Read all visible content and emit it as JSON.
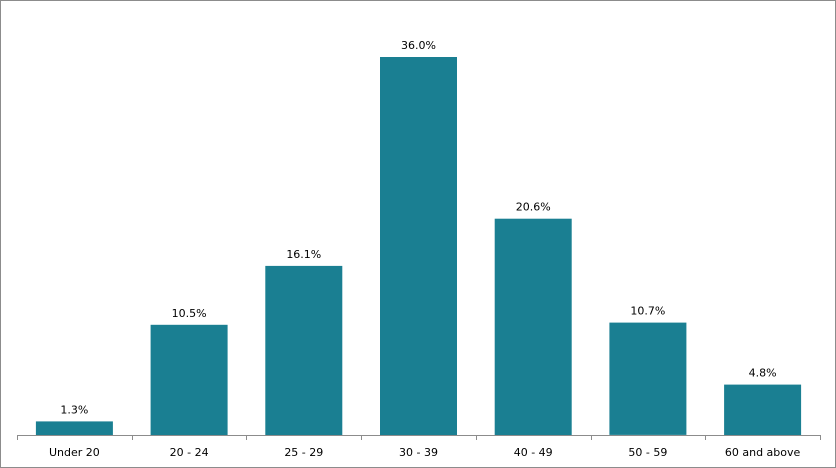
{
  "chart_data": {
    "type": "bar",
    "categories": [
      "Under 20",
      "20 - 24",
      "25 - 29",
      "30 - 39",
      "40 - 49",
      "50 - 59",
      "60 and above"
    ],
    "values": [
      1.3,
      10.5,
      16.1,
      36.0,
      20.6,
      10.7,
      4.8
    ],
    "data_labels": [
      "1.3%",
      "10.5%",
      "16.1%",
      "36.0%",
      "20.6%",
      "10.7%",
      "4.8%"
    ],
    "title": "",
    "xlabel": "",
    "ylabel": "",
    "ylim": [
      0,
      38
    ],
    "grid": false,
    "legend": "none",
    "bar_color": "#1a7f92"
  }
}
